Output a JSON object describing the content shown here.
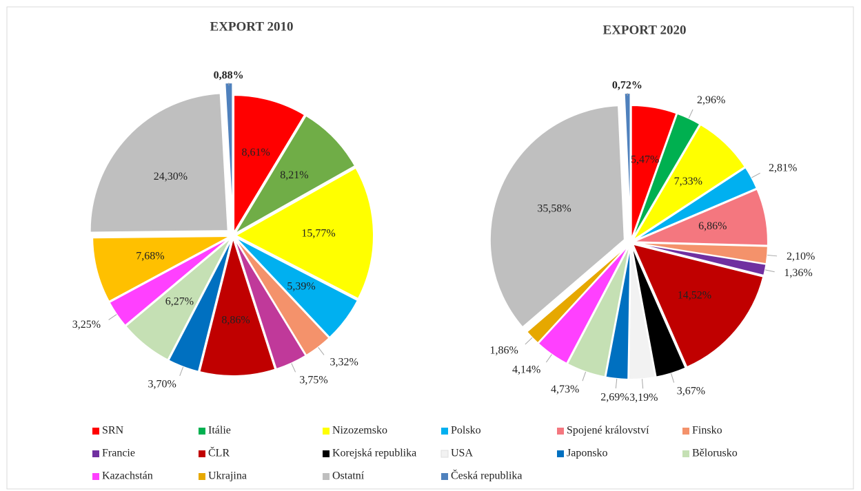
{
  "chart_data": [
    {
      "type": "pie",
      "title": "EXPORT 2010",
      "values": [
        8.61,
        8.21,
        15.77,
        5.39,
        3.32,
        3.75,
        8.86,
        3.7,
        6.27,
        3.25,
        7.68,
        24.3,
        0.88
      ],
      "value_labels": [
        "8,61%",
        "8,21%",
        "15,77%",
        "5,39%",
        "3,32%",
        "3,75%",
        "8,86%",
        "3,70%",
        "6,27%",
        "3,25%",
        "7,68%",
        "24,30%",
        "0,88%"
      ],
      "colors": [
        "#ff0000",
        "#70ad47",
        "#ffff00",
        "#00b0f0",
        "#f4926b",
        "#c0399a",
        "#c00000",
        "#0070c0",
        "#c5e0b4",
        "#ff40ff",
        "#ffc000",
        "#bfbfbf",
        "#4f81bd"
      ]
    },
    {
      "type": "pie",
      "title": "EXPORT 2020",
      "values": [
        5.47,
        2.96,
        7.33,
        2.81,
        6.86,
        2.1,
        1.36,
        14.52,
        3.67,
        3.19,
        2.69,
        4.73,
        4.14,
        1.86,
        35.58,
        0.72
      ],
      "value_labels": [
        "5,47%",
        "2,96%",
        "7,33%",
        "2,81%",
        "6,86%",
        "2,10%",
        "1,36%",
        "14,52%",
        "3,67%",
        "3,19%",
        "2,69%",
        "4,73%",
        "4,14%",
        "1,86%",
        "35,58%",
        "0,72%"
      ],
      "colors": [
        "#ff0000",
        "#00b050",
        "#ffff00",
        "#00b0f0",
        "#f4777f",
        "#f4926b",
        "#7030a0",
        "#c00000",
        "#000000",
        "#f2f2f2",
        "#0070c0",
        "#c5e0b4",
        "#ff40ff",
        "#e6a800",
        "#bfbfbf",
        "#4f81bd"
      ]
    }
  ],
  "legend": {
    "names": [
      "SRN",
      "Itálie",
      "Nizozemsko",
      "Polsko",
      "Spojené království",
      "Finsko",
      "Francie",
      "ČLR",
      "Korejská republika",
      "USA",
      "Japonsko",
      "Bělorusko",
      "Kazachstán",
      "Ukrajina",
      "Ostatní",
      "Česká republika"
    ],
    "colors": [
      "#ff0000",
      "#00b050",
      "#ffff00",
      "#00b0f0",
      "#f4777f",
      "#f4926b",
      "#7030a0",
      "#c00000",
      "#000000",
      "#f2f2f2",
      "#0070c0",
      "#c5e0b4",
      "#ff40ff",
      "#e6a800",
      "#bfbfbf",
      "#4f81bd"
    ]
  }
}
